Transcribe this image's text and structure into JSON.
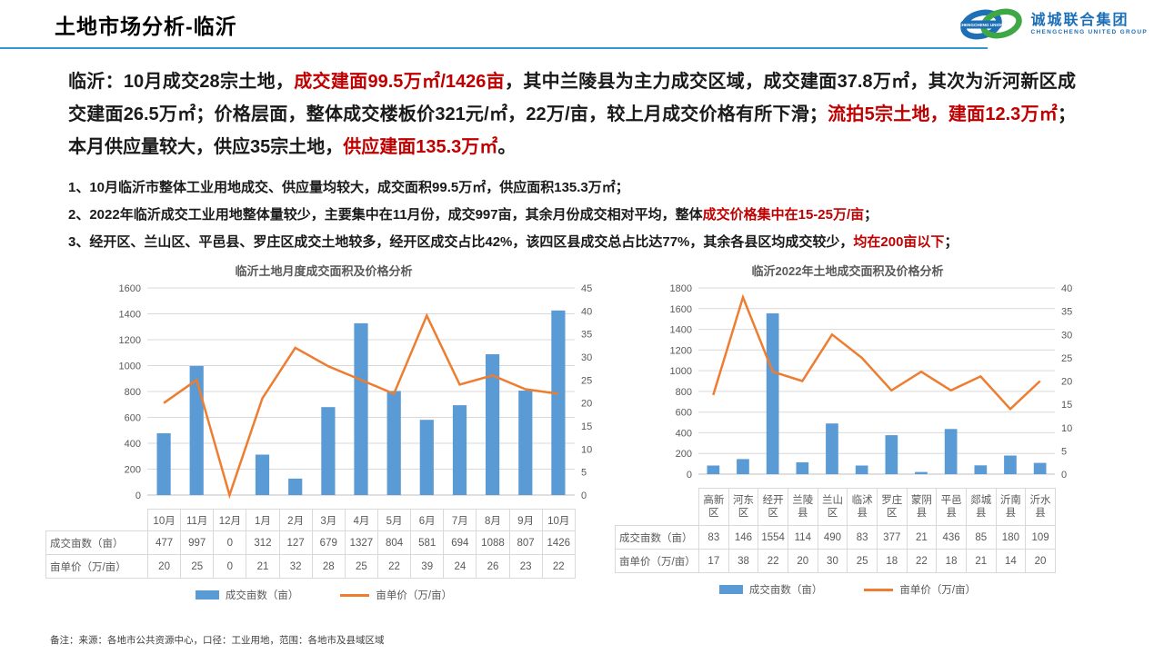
{
  "page": {
    "title": "土地市场分析-临沂",
    "footer": "备注：来源：各地市公共资源中心，口径：工业用地，范围：各地市及县域区域"
  },
  "logo": {
    "badge_text": "CHENGCHENG UNION",
    "name_cn": "诚城联合集团",
    "name_en": "CHENGCHENG UNITED GROUP"
  },
  "summary": {
    "segments": [
      {
        "t": "临沂：10月成交28宗土地，",
        "c": "k"
      },
      {
        "t": "成交建面99.5万㎡/1426亩",
        "c": "r"
      },
      {
        "t": "，其中兰陵县为主力成交区域，成交建面37.8万㎡，其次为沂河新区成交建面26.5万㎡；价格层面，整体成交楼板价321元/㎡，22万/亩，较上月成交价格有所下滑；",
        "c": "k"
      },
      {
        "t": "流拍5宗土地，建面12.3万㎡",
        "c": "r"
      },
      {
        "t": "；本月供应量较大，供应35宗土地，",
        "c": "k"
      },
      {
        "t": "供应建面135.3万㎡",
        "c": "r"
      },
      {
        "t": "。",
        "c": "k"
      }
    ]
  },
  "bullets": [
    {
      "segments": [
        {
          "t": "1、10月临沂市整体工业用地成交、供应量均较大，成交面积99.5万㎡，供应面积135.3万㎡；",
          "c": "k"
        }
      ]
    },
    {
      "segments": [
        {
          "t": "2、2022年临沂成交工业用地整体量较少，主要集中在11月份，成交997亩，其余月份成交相对平均，整体",
          "c": "k"
        },
        {
          "t": "成交价格集中在15-25万/亩",
          "c": "r"
        },
        {
          "t": "；",
          "c": "k"
        }
      ]
    },
    {
      "segments": [
        {
          "t": "3、经开区、兰山区、平邑县、罗庄区成交土地较多，经开区成交占比42%，该四区县成交总占比达77%，其余各县区均成交较少，",
          "c": "k"
        },
        {
          "t": "均在200亩以下",
          "c": "r"
        },
        {
          "t": "；",
          "c": "k"
        }
      ]
    }
  ],
  "colors": {
    "bar": "#5B9BD5",
    "line": "#ED7D31",
    "red": "#C00000",
    "header_line": "#2E97D4",
    "logo_blue": "#1E6FB5",
    "logo_green": "#3DA845",
    "grid": "#D9D9D9",
    "axis_text": "#595959"
  },
  "legend": {
    "bar_label": "成交亩数（亩）",
    "line_label": "亩单价（万/亩）"
  },
  "chart_data": [
    {
      "type": "bar+line",
      "title": "临沂土地月度成交面积及价格分析",
      "categories": [
        "10月",
        "11月",
        "12月",
        "1月",
        "2月",
        "3月",
        "4月",
        "5月",
        "6月",
        "7月",
        "8月",
        "9月",
        "10月"
      ],
      "series": [
        {
          "name": "成交亩数（亩）",
          "type": "bar",
          "axis": "left",
          "values": [
            477,
            997,
            0,
            312,
            127,
            679,
            1327,
            804,
            581,
            694,
            1088,
            807,
            1426
          ]
        },
        {
          "name": "亩单价（万/亩）",
          "type": "line",
          "axis": "right",
          "values": [
            20,
            25,
            0,
            21,
            32,
            28,
            25,
            22,
            39,
            24,
            26,
            23,
            22
          ]
        }
      ],
      "left_axis": {
        "min": 0,
        "max": 1600,
        "step": 200
      },
      "right_axis": {
        "min": 0,
        "max": 45,
        "step": 5
      },
      "grid": true,
      "legend_position": "bottom"
    },
    {
      "type": "bar+line",
      "title": "临沂2022年土地成交面积及价格分析",
      "categories": [
        "高新区",
        "河东区",
        "经开区",
        "兰陵县",
        "兰山区",
        "临沭县",
        "罗庄区",
        "蒙阴县",
        "平邑县",
        "郯城县",
        "沂南县",
        "沂水县"
      ],
      "series": [
        {
          "name": "成交亩数（亩）",
          "type": "bar",
          "axis": "left",
          "values": [
            83,
            146,
            1554,
            114,
            490,
            83,
            377,
            21,
            436,
            85,
            180,
            109
          ]
        },
        {
          "name": "亩单价（万/亩）",
          "type": "line",
          "axis": "right",
          "values": [
            17,
            38,
            22,
            20,
            30,
            25,
            18,
            22,
            18,
            21,
            14,
            20
          ]
        }
      ],
      "left_axis": {
        "min": 0,
        "max": 1800,
        "step": 200
      },
      "right_axis": {
        "min": 0,
        "max": 40,
        "step": 5
      },
      "grid": true,
      "legend_position": "bottom"
    }
  ]
}
